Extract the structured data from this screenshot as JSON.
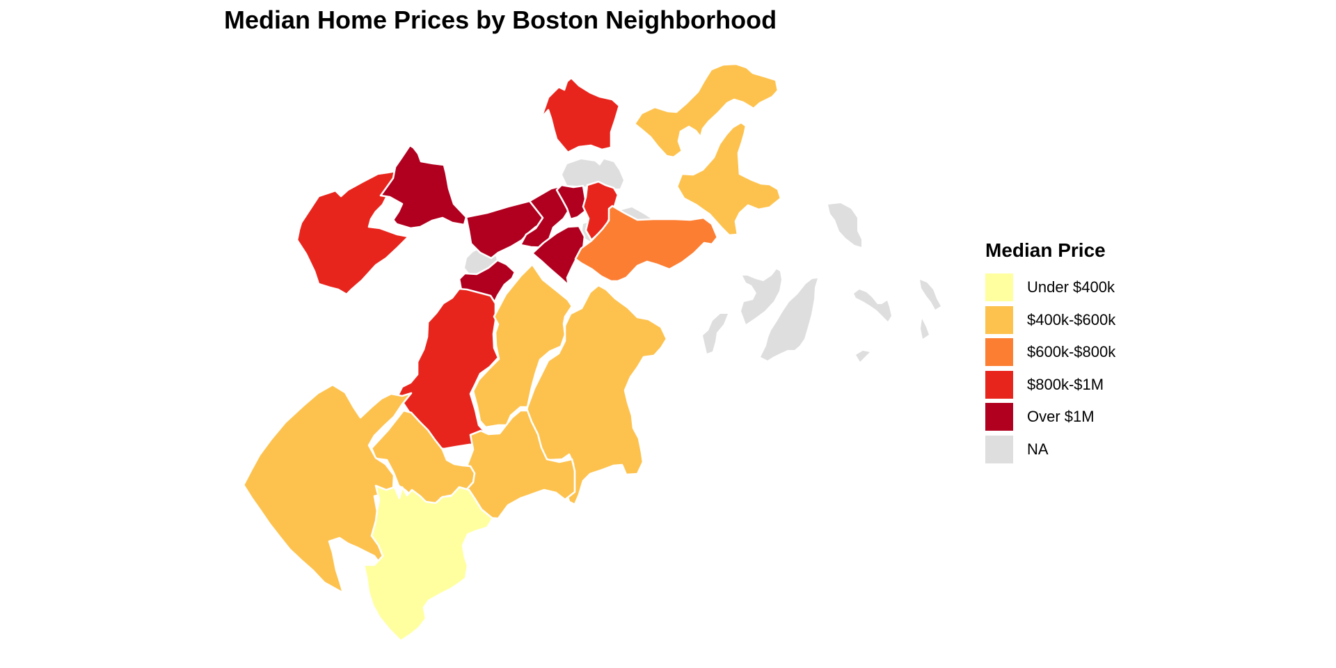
{
  "title": "Median Home Prices by Boston Neighborhood",
  "legend": {
    "title": "Median Price",
    "items": [
      {
        "key": "under_400k",
        "label": "Under $400k",
        "color": "#FFFFA0"
      },
      {
        "key": "400k_600k",
        "label": "$400k-$600k",
        "color": "#FDC24E"
      },
      {
        "key": "600k_800k",
        "label": "$600k-$800k",
        "color": "#FC7E33"
      },
      {
        "key": "800k_1m",
        "label": "$800k-$1M",
        "color": "#E8251D"
      },
      {
        "key": "over_1m",
        "label": "Over $1M",
        "color": "#B1001F"
      },
      {
        "key": "na",
        "label": "NA",
        "color": "#DEDEDE"
      }
    ]
  },
  "regions": [
    {
      "id": "north-end-nw",
      "category": "800k_1m"
    },
    {
      "id": "east-boston",
      "category": "400k_600k"
    },
    {
      "id": "charlestown",
      "category": "na"
    },
    {
      "id": "allston",
      "category": "800k_1m"
    },
    {
      "id": "brighton",
      "category": "over_1m"
    },
    {
      "id": "fenway",
      "category": "over_1m"
    },
    {
      "id": "back-bay",
      "category": "over_1m"
    },
    {
      "id": "beacon-hill",
      "category": "over_1m"
    },
    {
      "id": "downtown",
      "category": "800k_1m"
    },
    {
      "id": "south-end",
      "category": "over_1m"
    },
    {
      "id": "longwood",
      "category": "na"
    },
    {
      "id": "mission-hill",
      "category": "over_1m"
    },
    {
      "id": "seaport",
      "category": "na"
    },
    {
      "id": "south-boston",
      "category": "600k_800k"
    },
    {
      "id": "jamaica-plain",
      "category": "800k_1m"
    },
    {
      "id": "roxbury",
      "category": "400k_600k"
    },
    {
      "id": "dorchester",
      "category": "400k_600k"
    },
    {
      "id": "mattapan",
      "category": "400k_600k"
    },
    {
      "id": "roslindale",
      "category": "400k_600k"
    },
    {
      "id": "west-roxbury",
      "category": "400k_600k"
    },
    {
      "id": "hyde-park",
      "category": "under_400k"
    },
    {
      "id": "harbor-islands",
      "category": "na"
    }
  ]
}
